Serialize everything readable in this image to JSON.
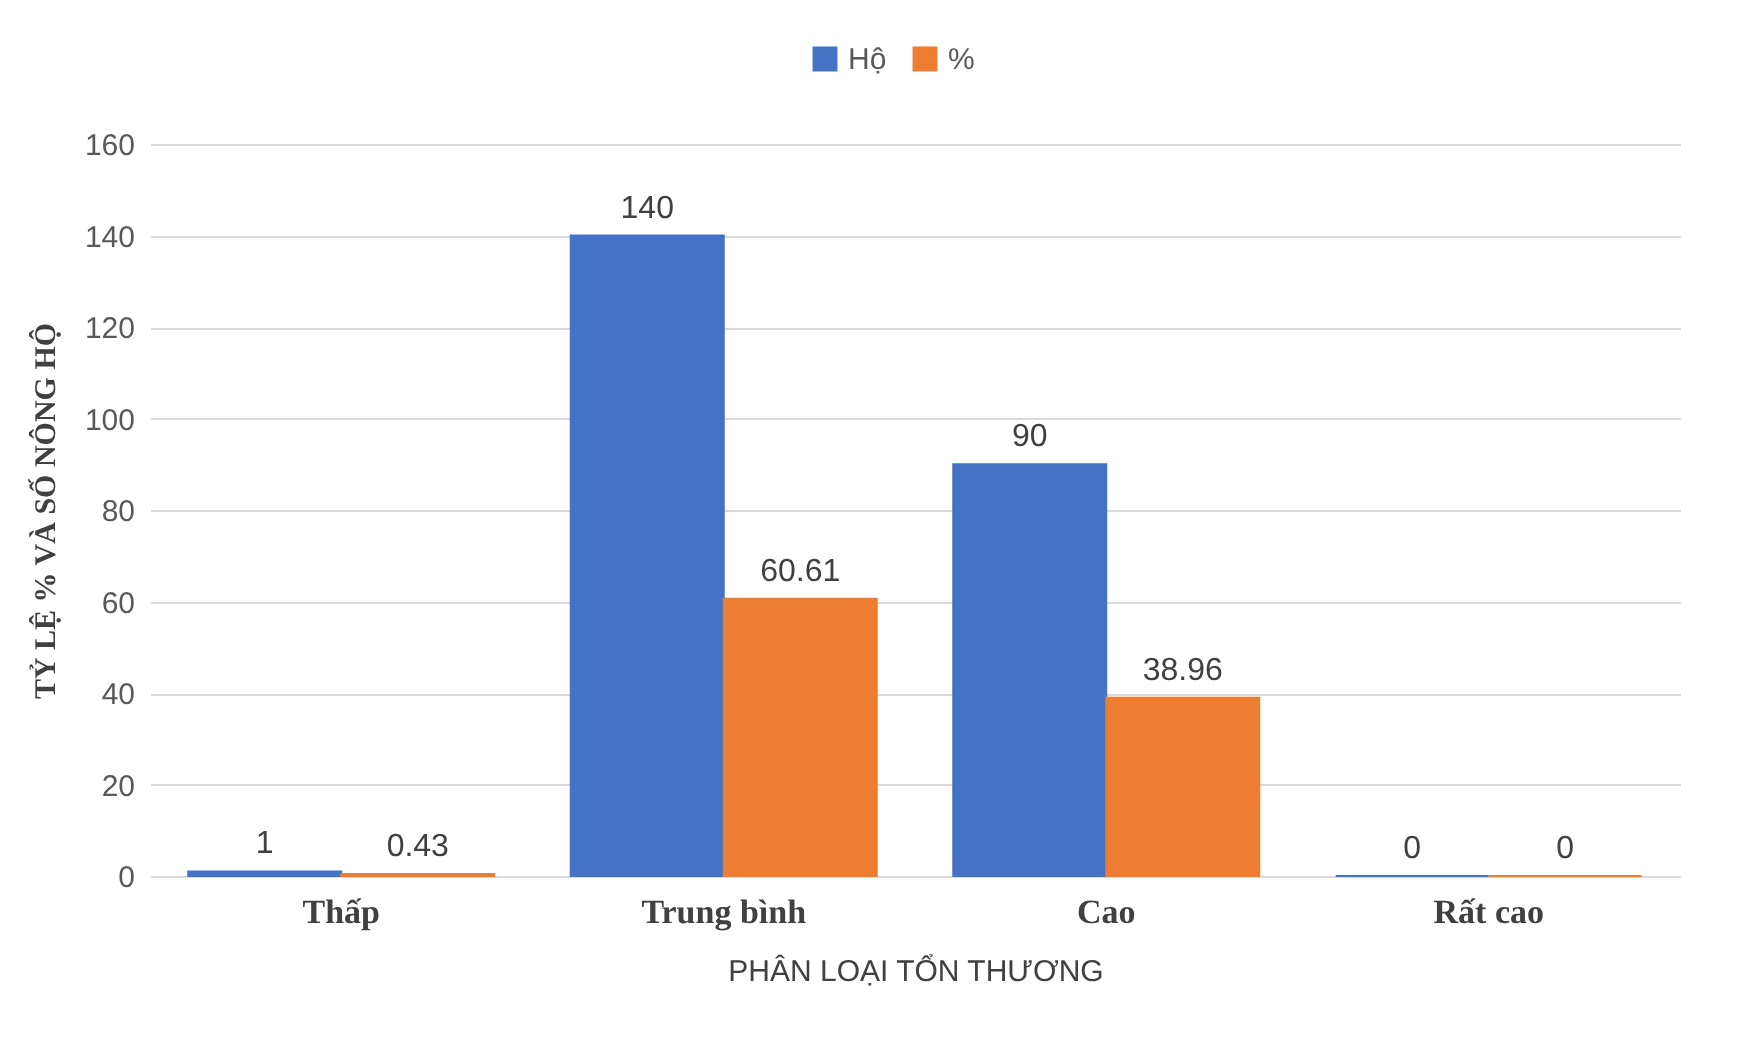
{
  "chart_data": {
    "type": "bar",
    "xlabel": "PHÂN LOẠI TỔN THƯƠNG",
    "ylabel": "TỶ LỆ % VÀ SỐ NÔNG HỘ",
    "categories": [
      "Thấp",
      "Trung bình",
      "Cao",
      "Rất cao"
    ],
    "series": [
      {
        "name": "Hộ",
        "color": "#4472c4",
        "values": [
          1,
          140,
          90,
          0
        ]
      },
      {
        "name": "%",
        "color": "#ed7d31",
        "values": [
          0.43,
          60.61,
          38.96,
          0
        ]
      }
    ],
    "ylim": [
      0,
      160
    ],
    "yticks": [
      0,
      20,
      40,
      60,
      80,
      100,
      120,
      140,
      160
    ],
    "data_labels": true,
    "grid": "y",
    "legend": "top"
  }
}
